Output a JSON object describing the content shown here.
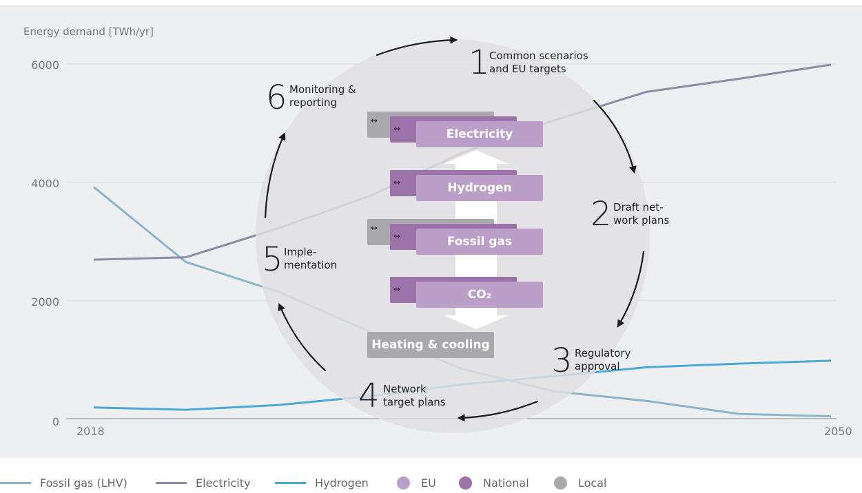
{
  "chart_data": {
    "type": "line",
    "ylabel": "Energy demand [TWh/yr]",
    "x": [
      2018,
      2022,
      2026,
      2030,
      2034,
      2038,
      2042,
      2046,
      2050
    ],
    "x_tick_labels": [
      "2018",
      "2050"
    ],
    "y_ticks": [
      "0",
      "2000",
      "4000",
      "6000"
    ],
    "ylim": [
      0,
      6000
    ],
    "grid": true,
    "series": [
      {
        "name": "Fossil gas (LHV)",
        "color": "#8ab5c9",
        "values": [
          3920,
          2650,
          2150,
          1470,
          840,
          460,
          300,
          80,
          40
        ]
      },
      {
        "name": "Electricity",
        "color": "#8a8ca1",
        "values": [
          2690,
          2730,
          3220,
          3770,
          4500,
          5050,
          5530,
          5750,
          5990
        ]
      },
      {
        "name": "Hydrogen",
        "color": "#4aa8d8",
        "values": [
          190,
          150,
          230,
          380,
          580,
          720,
          870,
          930,
          980
        ]
      }
    ]
  },
  "cycle": {
    "steps": [
      {
        "number": "1",
        "label_lines": [
          "Common scenarios",
          "and EU targets"
        ]
      },
      {
        "number": "2",
        "label_lines": [
          "Draft net-",
          "work plans"
        ]
      },
      {
        "number": "3",
        "label_lines": [
          "Regulatory",
          "approval"
        ]
      },
      {
        "number": "4",
        "label_lines": [
          "Network",
          "target plans"
        ]
      },
      {
        "number": "5",
        "label_lines": [
          "Imple-",
          "mentation"
        ]
      },
      {
        "number": "6",
        "label_lines": [
          "Monitoring &",
          "reporting"
        ]
      }
    ],
    "carriers": [
      "Electricity",
      "Hydrogen",
      "Fossil gas",
      "CO₂",
      "Heating & cooling"
    ],
    "colors": {
      "eu": "#bc9fc8",
      "national": "#9b73a9",
      "local": "#a9a9ad"
    }
  },
  "legend": [
    {
      "label": "Fossil gas (LHV)",
      "kind": "line",
      "color": "#8ab5c9"
    },
    {
      "label": "Electricity",
      "kind": "line",
      "color": "#8a8ca1"
    },
    {
      "label": "Hydrogen",
      "kind": "line",
      "color": "#4aa8d8"
    },
    {
      "label": "EU",
      "kind": "dot",
      "color": "#bc9fc8"
    },
    {
      "label": "National",
      "kind": "dot",
      "color": "#9b73a9"
    },
    {
      "label": "Local",
      "kind": "dot",
      "color": "#a9a9ad"
    }
  ]
}
